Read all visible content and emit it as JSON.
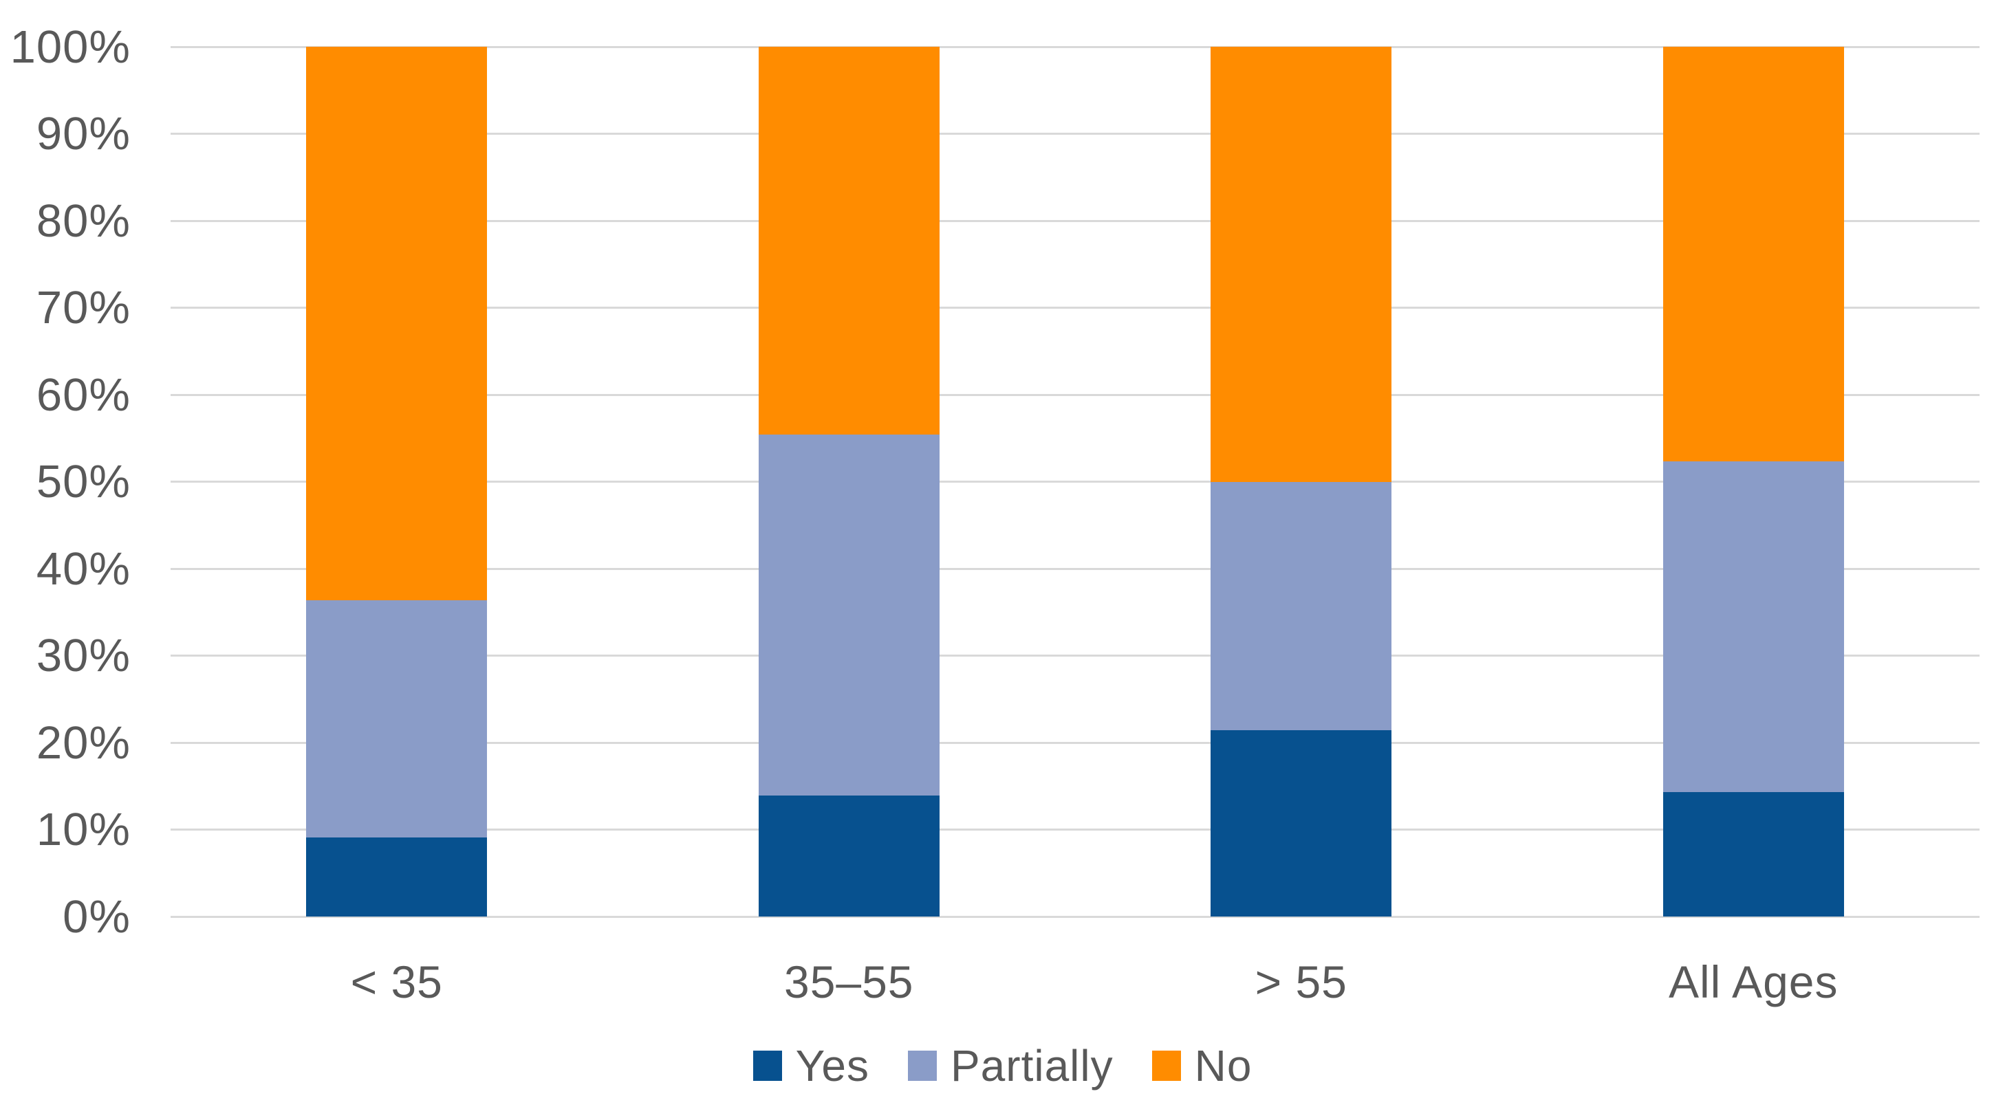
{
  "chart_data": {
    "type": "bar",
    "subtype": "stacked-100-percent",
    "title": "",
    "xlabel": "",
    "ylabel": "",
    "categories": [
      "< 35",
      "35–55",
      "> 55",
      "All Ages"
    ],
    "series": [
      {
        "name": "Yes",
        "color": "#07518f",
        "values": [
          9.1,
          13.9,
          21.4,
          14.3
        ]
      },
      {
        "name": "Partially",
        "color": "#8a9cc8",
        "values": [
          27.3,
          41.5,
          28.6,
          38.0
        ]
      },
      {
        "name": "No",
        "color": "#ff8c00",
        "values": [
          63.6,
          44.6,
          50.0,
          47.7
        ]
      }
    ],
    "stack_order_bottom_to_top": [
      "Yes",
      "Partially",
      "No"
    ],
    "y_axis": {
      "min": 0,
      "max": 100,
      "tick_labels": [
        "0%",
        "10%",
        "20%",
        "30%",
        "40%",
        "50%",
        "60%",
        "70%",
        "80%",
        "90%",
        "100%"
      ],
      "grid": true
    },
    "legend": {
      "position": "bottom-center",
      "items": [
        "Yes",
        "Partially",
        "No"
      ]
    },
    "colors": {
      "gridline": "#d9d9d9",
      "axis_text": "#595959",
      "background": "#ffffff"
    }
  }
}
